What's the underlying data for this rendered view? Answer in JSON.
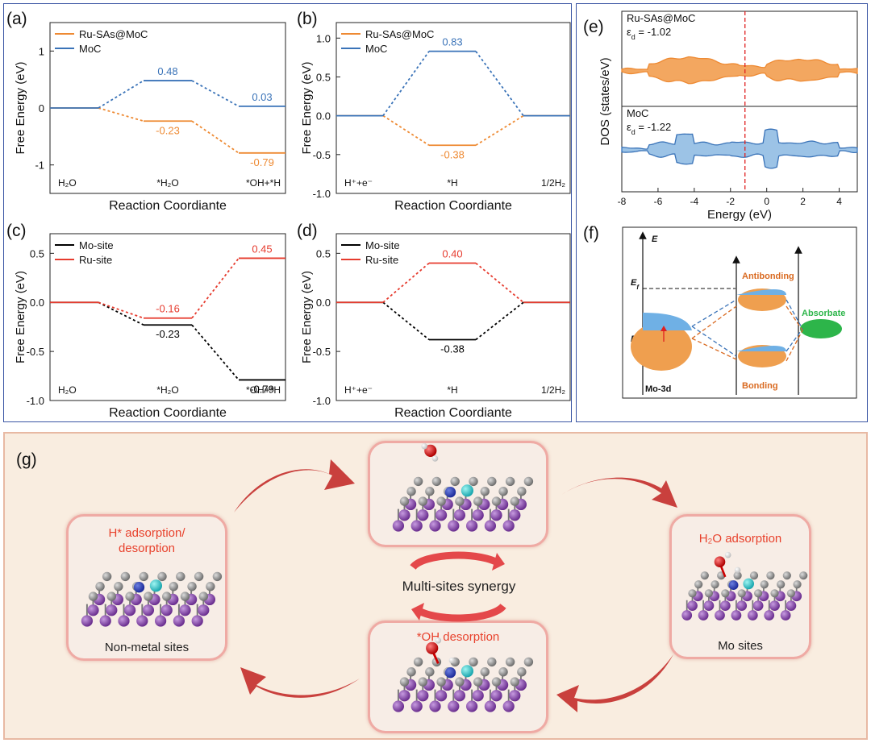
{
  "panel_labels": {
    "a": "(a)",
    "b": "(b)",
    "c": "(c)",
    "d": "(d)",
    "e": "(e)",
    "f": "(f)",
    "g": "(g)"
  },
  "colors": {
    "orange": "#ee8a33",
    "blue": "#3a73b8",
    "black": "#000000",
    "red": "#e63b2e",
    "frame": "#3b56a4"
  },
  "chart_data": [
    {
      "id": "a",
      "type": "line",
      "ylabel": "Free Energy (eV)",
      "xlabel": "Reaction Coordiante",
      "ylim": [
        -1.5,
        1.5
      ],
      "yticks": [
        -1,
        0,
        1
      ],
      "categories": [
        "H₂O",
        "*H₂O",
        "*OH+*H"
      ],
      "series": [
        {
          "name": "Ru-SAs@MoC",
          "color": "#ee8a33",
          "values": [
            0,
            -0.23,
            -0.79
          ],
          "labels": [
            "",
            "-0.23",
            "-0.79"
          ]
        },
        {
          "name": "MoC",
          "color": "#3a73b8",
          "values": [
            0,
            0.48,
            0.03
          ],
          "labels": [
            "",
            "0.48",
            "0.03"
          ]
        }
      ]
    },
    {
      "id": "b",
      "type": "line",
      "ylabel": "Free Energy (eV)",
      "xlabel": "Reaction Coordiante",
      "ylim": [
        -1.0,
        1.2
      ],
      "yticks": [
        -1.0,
        -0.5,
        0.0,
        0.5,
        1.0
      ],
      "categories": [
        "H⁺+e⁻",
        "*H",
        "1/2H₂"
      ],
      "series": [
        {
          "name": "Ru-SAs@MoC",
          "color": "#ee8a33",
          "values": [
            0,
            -0.38,
            0
          ],
          "labels": [
            "",
            "-0.38",
            ""
          ]
        },
        {
          "name": "MoC",
          "color": "#3a73b8",
          "values": [
            0,
            0.83,
            0
          ],
          "labels": [
            "",
            "0.83",
            ""
          ]
        }
      ]
    },
    {
      "id": "c",
      "type": "line",
      "ylabel": "Free Energy (eV)",
      "xlabel": "Reaction Coordiante",
      "ylim": [
        -1.0,
        0.7
      ],
      "yticks": [
        -1.0,
        -0.5,
        0.0,
        0.5
      ],
      "categories": [
        "H₂O",
        "*H₂O",
        "*OH+*H"
      ],
      "series": [
        {
          "name": "Mo-site",
          "color": "#000000",
          "values": [
            0,
            -0.23,
            -0.79
          ],
          "labels": [
            "",
            "-0.23",
            "-0.79"
          ]
        },
        {
          "name": "Ru-site",
          "color": "#e63b2e",
          "values": [
            0,
            -0.16,
            0.45
          ],
          "labels": [
            "",
            "-0.16",
            "0.45"
          ]
        }
      ]
    },
    {
      "id": "d",
      "type": "line",
      "ylabel": "Free Energy (eV)",
      "xlabel": "Reaction Coordiante",
      "ylim": [
        -1.0,
        0.7
      ],
      "yticks": [
        -1.0,
        -0.5,
        0.0,
        0.5
      ],
      "categories": [
        "H⁺+e⁻",
        "*H",
        "1/2H₂"
      ],
      "series": [
        {
          "name": "Mo-site",
          "color": "#000000",
          "values": [
            0,
            -0.38,
            0
          ],
          "labels": [
            "",
            "-0.38",
            ""
          ]
        },
        {
          "name": "Ru-site",
          "color": "#e63b2e",
          "values": [
            0,
            0.4,
            0
          ],
          "labels": [
            "",
            "0.40",
            ""
          ]
        }
      ]
    },
    {
      "id": "e",
      "type": "area",
      "ylabel": "DOS (states/eV)",
      "xlabel": "Energy (eV)",
      "xlim": [
        -8,
        5
      ],
      "xticks": [
        -8,
        -6,
        -4,
        -2,
        0,
        2,
        4
      ],
      "vline": -1.2,
      "series": [
        {
          "name": "Ru-SAs@MoC",
          "color": "#ee8a33",
          "annotation": "ε",
          "annotation_sub": "d",
          "annotation_value": "= -1.02"
        },
        {
          "name": "MoC",
          "color": "#3a73b8",
          "annotation": "ε",
          "annotation_sub": "d",
          "annotation_value": "= -1.22"
        }
      ]
    }
  ],
  "diagram_f": {
    "axis_label": "E",
    "ef_label": "E",
    "ef_sub": "f",
    "ed_label": "E",
    "ed_sub": "d",
    "antibonding": "Antibonding",
    "bonding": "Bonding",
    "absorbate": "Absorbate",
    "mo3d": "Mo-3d"
  },
  "panel_g": {
    "left_title": "H* adsorption/\ndesorption",
    "left_caption": "Non-metal sites",
    "right_title": "H₂O adsorption",
    "right_caption": "Mo sites",
    "bottom_title": "*OH desorption",
    "center": "Multi-sites synergy"
  }
}
